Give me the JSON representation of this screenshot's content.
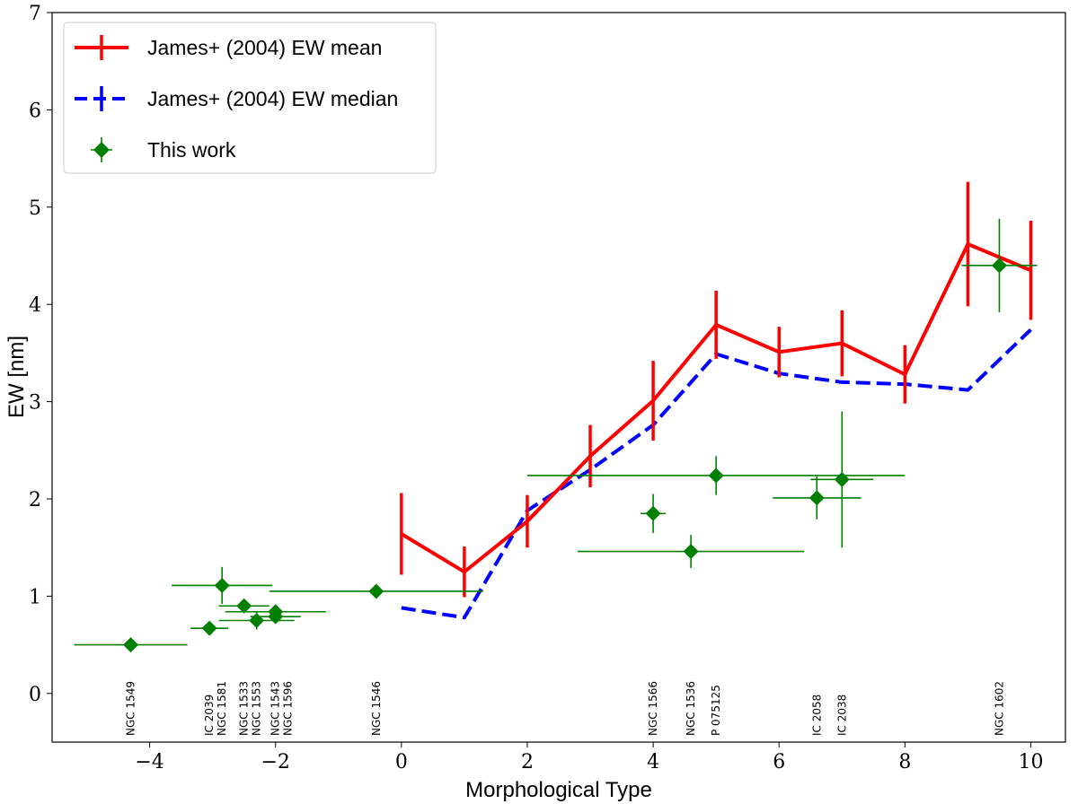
{
  "chart_data": {
    "type": "line",
    "xlabel": "Morphological Type",
    "ylabel": "EW [nm]",
    "xlim": [
      -5.55,
      10.55
    ],
    "ylim": [
      -0.5,
      7
    ],
    "xticks": [
      -4,
      -2,
      0,
      2,
      4,
      6,
      8,
      10
    ],
    "xtick_labels": [
      "−4",
      "−2",
      "0",
      "2",
      "4",
      "6",
      "8",
      "10"
    ],
    "yticks": [
      0,
      1,
      2,
      3,
      4,
      5,
      6,
      7
    ],
    "ytick_labels": [
      "0",
      "1",
      "2",
      "3",
      "4",
      "5",
      "6",
      "7"
    ],
    "grid": false,
    "legend_position": "top-left",
    "legend": [
      {
        "label": "James+ (2004) EW mean",
        "color": "#ff0000",
        "style": "solid",
        "marker": "errorbar"
      },
      {
        "label": "James+ (2004) EW median",
        "color": "#0000ff",
        "style": "dashed",
        "marker": "errorbar"
      },
      {
        "label": "This work",
        "color": "#008000",
        "style": "none",
        "marker": "diamond"
      }
    ],
    "series": [
      {
        "name": "James+ (2004) EW mean",
        "color": "#ff0000",
        "x": [
          0,
          1,
          2,
          3,
          4,
          5,
          6,
          7,
          8,
          9,
          10
        ],
        "y": [
          1.64,
          1.25,
          1.77,
          2.44,
          3.01,
          3.79,
          3.51,
          3.6,
          3.28,
          4.62,
          4.35
        ],
        "yerr": [
          0.42,
          0.26,
          0.27,
          0.32,
          0.41,
          0.35,
          0.26,
          0.34,
          0.3,
          0.64,
          0.51
        ]
      },
      {
        "name": "James+ (2004) EW median",
        "color": "#0000ff",
        "x": [
          0,
          1,
          2,
          3,
          4,
          5,
          6,
          7,
          8,
          9,
          10
        ],
        "y": [
          0.88,
          0.78,
          1.88,
          2.3,
          2.76,
          3.49,
          3.29,
          3.2,
          3.18,
          3.12,
          3.74
        ]
      },
      {
        "name": "This work",
        "color": "#008000",
        "points": [
          {
            "x": -4.3,
            "y": 0.5,
            "xerr": 0.9,
            "yerr": 0.0,
            "label": "NGC 1549"
          },
          {
            "x": -3.05,
            "y": 0.67,
            "xerr": 0.3,
            "yerr": 0.0,
            "label": "IC 2039"
          },
          {
            "x": -2.85,
            "y": 1.11,
            "xerr": 0.8,
            "yerr": 0.19,
            "label": "NGC 1581"
          },
          {
            "x": -2.5,
            "y": 0.9,
            "xerr": 0.4,
            "yerr": 0.0,
            "label": "NGC 1533"
          },
          {
            "x": -2.3,
            "y": 0.75,
            "xerr": 0.6,
            "yerr": 0.09,
            "label": "NGC 1553"
          },
          {
            "x": -2.0,
            "y": 0.84,
            "xerr": 0.8,
            "yerr": 0.07,
            "label": "NGC 1543"
          },
          {
            "x": -2.0,
            "y": 0.79,
            "xerr": 0.4,
            "yerr": 0.0,
            "label": "NGC 1596"
          },
          {
            "x": -0.4,
            "y": 1.05,
            "xerr": 1.7,
            "yerr": 0.0,
            "label": "NGC 1546"
          },
          {
            "x": 4.0,
            "y": 1.85,
            "xerr": 0.2,
            "yerr": 0.2,
            "label": "NGC 1566"
          },
          {
            "x": 4.6,
            "y": 1.46,
            "xerr": 1.8,
            "yerr": 0.17,
            "label": "NGC 1536"
          },
          {
            "x": 5.0,
            "y": 2.24,
            "xerr": 3.0,
            "yerr": 0.2,
            "label": "P 075125"
          },
          {
            "x": 6.6,
            "y": 2.01,
            "xerr": 0.7,
            "yerr": 0.22,
            "label": "IC 2058"
          },
          {
            "x": 7.0,
            "y": 2.2,
            "xerr": 0.5,
            "yerr": 0.7,
            "label": "IC 2038"
          },
          {
            "x": 9.5,
            "y": 4.4,
            "xerr": 0.6,
            "yerr": 0.48,
            "label": "NGC 1602"
          }
        ]
      }
    ]
  }
}
